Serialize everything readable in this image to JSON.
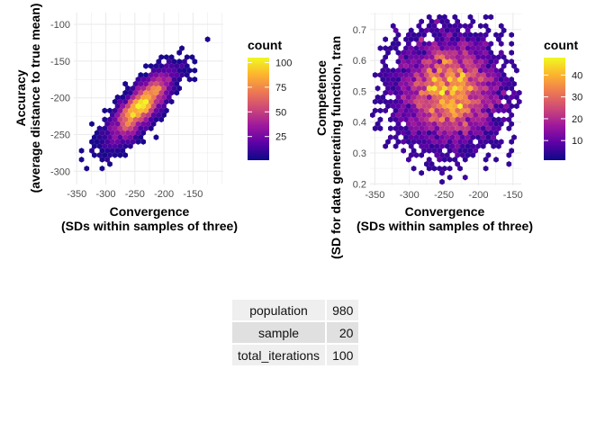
{
  "chart_data": [
    {
      "type": "heatmap",
      "subtype": "hexbin",
      "xlabel": "Convergence\n(SDs within samples of three)",
      "ylabel": "Accuracy\n(average distance to true mean)",
      "xlim": [
        -355,
        -98
      ],
      "ylim": [
        -318,
        -84
      ],
      "x_ticks": [
        -350,
        -300,
        -250,
        -200,
        -150
      ],
      "y_ticks": [
        -300,
        -250,
        -200,
        -150,
        -100
      ],
      "grid": true,
      "trend": {
        "slope": 0.92,
        "intercept": 6,
        "sd_along": 38,
        "sd_perp": 13,
        "center": [
          -240,
          -212
        ]
      },
      "legend": {
        "title": "count",
        "range": [
          1,
          105
        ],
        "labels": [
          25,
          50,
          75,
          100
        ],
        "position": "right"
      },
      "palette": [
        "#0d0887",
        "#5c01a6",
        "#9c179e",
        "#cc4778",
        "#ed7953",
        "#fdb42f",
        "#f0f921"
      ]
    },
    {
      "type": "heatmap",
      "subtype": "hexbin",
      "xlabel": "Convergence\n(SDs within samples of three)",
      "ylabel": "Competence\n(SD for data generating function, tran",
      "xlim": [
        -357,
        -138
      ],
      "ylim": [
        0.195,
        0.755
      ],
      "x_ticks": [
        -350,
        -300,
        -250,
        -200,
        -150
      ],
      "y_ticks": [
        0.2,
        0.3,
        0.4,
        0.5,
        0.6,
        0.7
      ],
      "grid": true,
      "center": [
        -243,
        0.5
      ],
      "spread": [
        38,
        0.09
      ],
      "legend": {
        "title": "count",
        "range": [
          1,
          48
        ],
        "labels": [
          10,
          20,
          30,
          40
        ],
        "position": "right"
      },
      "palette": [
        "#0d0887",
        "#5c01a6",
        "#9c179e",
        "#cc4778",
        "#ed7953",
        "#fdb42f",
        "#f0f921"
      ]
    }
  ],
  "table": {
    "rows": [
      {
        "key": "population",
        "value": "980"
      },
      {
        "key": "sample",
        "value": "20"
      },
      {
        "key": "total_iterations",
        "value": "100"
      }
    ]
  }
}
